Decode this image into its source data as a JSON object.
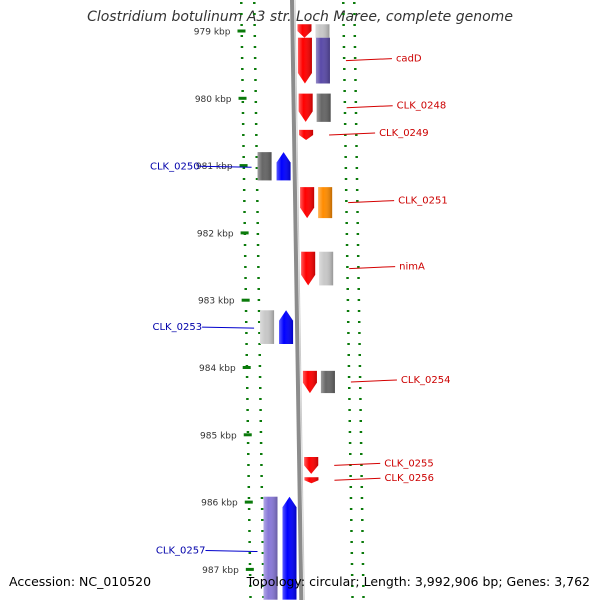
{
  "title": "Clostridium botulinum A3 str. Loch Maree, complete genome",
  "footer": {
    "accession": "Accession: NC_010520",
    "summary": "Topology: circular; Length: 3,992,906 bp; Genes: 3,762"
  },
  "colors": {
    "forward": "#ff0000",
    "reverse": "#0000ff",
    "gray": "#666666",
    "lightgray": "#c8c8c8",
    "orange": "#ff8c00",
    "purple": "#5a4aa8",
    "lavender": "#8878d8",
    "tick": "#0a7a0a",
    "backbone": "#8c8c8c"
  },
  "ticks": [
    {
      "label": "979 kbp",
      "kbp": 979
    },
    {
      "label": "980 kbp",
      "kbp": 980
    },
    {
      "label": "981 kbp",
      "kbp": 981
    },
    {
      "label": "982 kbp",
      "kbp": 982
    },
    {
      "label": "983 kbp",
      "kbp": 983
    },
    {
      "label": "984 kbp",
      "kbp": 984
    },
    {
      "label": "985 kbp",
      "kbp": 985
    },
    {
      "label": "986 kbp",
      "kbp": 986
    },
    {
      "label": "987 kbp",
      "kbp": 987
    }
  ],
  "genes": [
    {
      "label": "",
      "strand": "+",
      "start": 978.9,
      "end": 979.1,
      "cog": "lightgray"
    },
    {
      "label": "cadD",
      "strand": "+",
      "start": 979.1,
      "end": 979.78,
      "cog": "purple"
    },
    {
      "label": "CLK_0248",
      "strand": "+",
      "start": 979.93,
      "end": 980.35,
      "cog": "gray"
    },
    {
      "label": "CLK_0249",
      "strand": "+",
      "start": 980.47,
      "end": 980.62,
      "cog": "none"
    },
    {
      "label": "CLK_0250",
      "strand": "-",
      "start": 980.8,
      "end": 981.22,
      "cog": "gray"
    },
    {
      "label": "CLK_0251",
      "strand": "+",
      "start": 981.32,
      "end": 981.78,
      "cog": "orange"
    },
    {
      "label": "nimA",
      "strand": "+",
      "start": 982.28,
      "end": 982.78,
      "cog": "lightgray"
    },
    {
      "label": "CLK_0253",
      "strand": "-",
      "start": 983.15,
      "end": 983.65,
      "cog": "lightgray"
    },
    {
      "label": "CLK_0254",
      "strand": "+",
      "start": 984.05,
      "end": 984.38,
      "cog": "gray"
    },
    {
      "label": "CLK_0255",
      "strand": "+",
      "start": 985.33,
      "end": 985.58,
      "cog": "none"
    },
    {
      "label": "CLK_0256",
      "strand": "+",
      "start": 985.63,
      "end": 985.72,
      "cog": "none"
    },
    {
      "label": "CLK_0257",
      "strand": "-",
      "start": 985.92,
      "end": 987.45,
      "cog": "lavender"
    }
  ]
}
